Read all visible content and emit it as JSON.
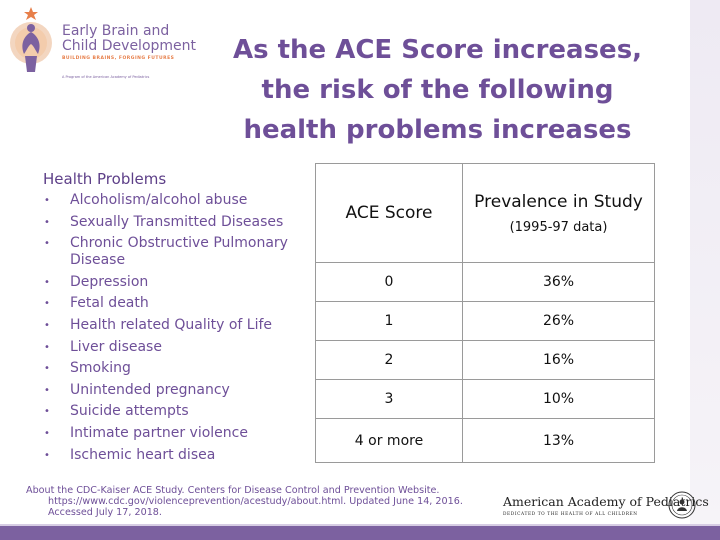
{
  "logo": {
    "title_line1": "Early Brain and",
    "title_line2": "Child Development",
    "tagline": "BUILDING BRAINS, FORGING FUTURES",
    "sub": "A Program of the American Academy of Pediatrics",
    "colors": {
      "purple": "#7c61a0",
      "orange": "#e77f4a"
    }
  },
  "title": {
    "line1": "As the ACE Score increases,",
    "line2": "the risk of the following",
    "line3": "health problems increases"
  },
  "health_problems": {
    "heading": "Health Problems",
    "items": [
      "Alcoholism/alcohol abuse",
      "Sexually Transmitted Diseases",
      "Chronic Obstructive Pulmonary Disease",
      "Depression",
      "Fetal death",
      "Health related Quality of Life",
      "Liver disease",
      "Smoking",
      "Unintended pregnancy",
      "Suicide attempts",
      "Intimate partner violence",
      "Ischemic heart disea"
    ]
  },
  "table": {
    "col1_header": "ACE Score",
    "col2_header": "Prevalence in Study",
    "col2_sub": "(1995-97 data)",
    "rows": [
      {
        "score": "0",
        "prevalence": "36%"
      },
      {
        "score": "1",
        "prevalence": "26%"
      },
      {
        "score": "2",
        "prevalence": "16%"
      },
      {
        "score": "3",
        "prevalence": "10%"
      },
      {
        "score": "4 or more",
        "prevalence": "13%"
      }
    ]
  },
  "citation": {
    "line1": "About the CDC-Kaiser ACE Study. Centers for Disease Control and Prevention Website.",
    "line2": "https://www.cdc.gov/violenceprevention/acestudy/about.html. Updated June 14, 2016.",
    "line3": "Accessed July 17, 2018."
  },
  "aap": {
    "name": "American Academy of Pediatrics",
    "tagline": "DEDICATED TO THE HEALTH OF ALL CHILDREN"
  },
  "theme": {
    "title_color": "#6e4f98",
    "bar_color": "#7c61a0"
  }
}
